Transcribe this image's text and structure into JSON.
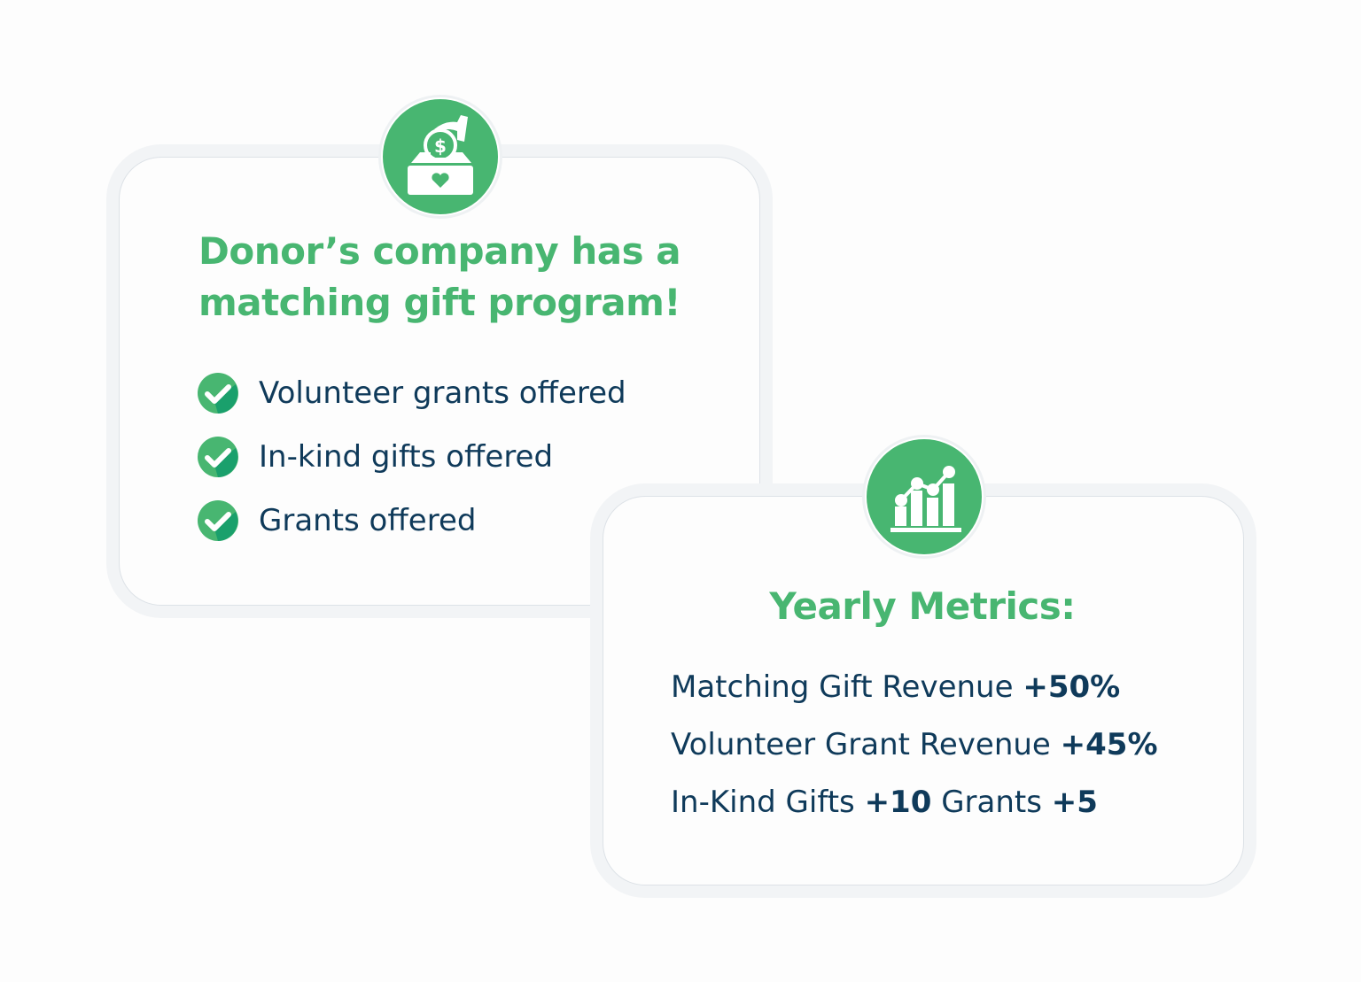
{
  "colors": {
    "accent": "#48b671",
    "text": "#0f3a5a"
  },
  "card1": {
    "icon": "donation-box-icon",
    "title": "Donor’s company has a matching gift program!",
    "items": [
      {
        "label": "Volunteer grants offered",
        "icon": "check-circle-icon"
      },
      {
        "label": "In-kind gifts offered",
        "icon": "check-circle-icon"
      },
      {
        "label": "Grants offered",
        "icon": "check-circle-icon"
      }
    ]
  },
  "card2": {
    "icon": "bar-chart-growth-icon",
    "title": "Yearly Metrics:",
    "metrics": [
      {
        "label": "Matching Gift Revenue",
        "value": "+50%"
      },
      {
        "label": "Volunteer Grant Revenue",
        "value": "+45%"
      },
      {
        "label": "In-Kind Gifts",
        "value": "+10",
        "label2": "Grants",
        "value2": "+5"
      }
    ]
  }
}
